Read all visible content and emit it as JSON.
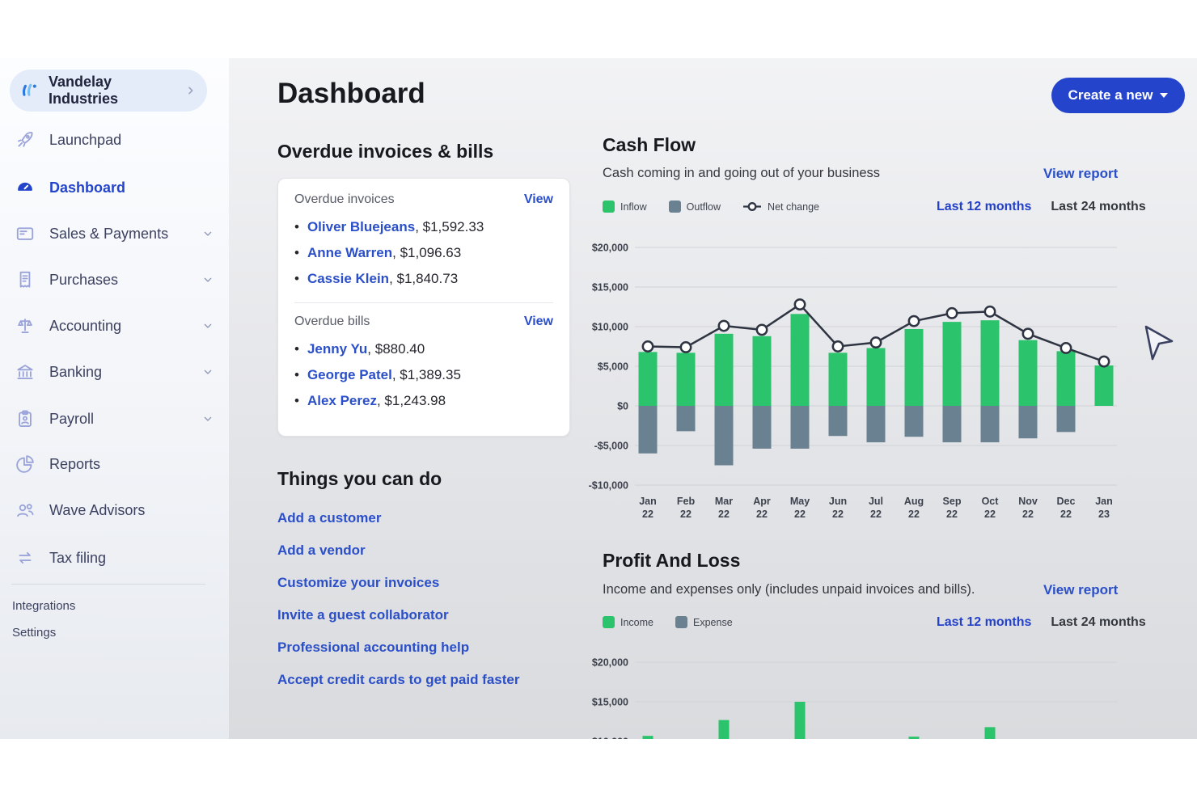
{
  "app": {
    "company": "Vandelay Industries",
    "page_title": "Dashboard",
    "create_button": "Create a new"
  },
  "sidebar": {
    "items": [
      {
        "label": "Launchpad",
        "icon": "rocket-icon",
        "expandable": false,
        "active": false
      },
      {
        "label": "Dashboard",
        "icon": "gauge-icon",
        "expandable": false,
        "active": true
      },
      {
        "label": "Sales & Payments",
        "icon": "invoice-icon",
        "expandable": true,
        "active": false
      },
      {
        "label": "Purchases",
        "icon": "receipt-icon",
        "expandable": true,
        "active": false
      },
      {
        "label": "Accounting",
        "icon": "scale-icon",
        "expandable": true,
        "active": false
      },
      {
        "label": "Banking",
        "icon": "bank-icon",
        "expandable": true,
        "active": false
      },
      {
        "label": "Payroll",
        "icon": "payroll-icon",
        "expandable": true,
        "active": false
      },
      {
        "label": "Reports",
        "icon": "reports-icon",
        "expandable": false,
        "active": false
      },
      {
        "label": "Wave Advisors",
        "icon": "advisors-icon",
        "expandable": false,
        "active": false
      },
      {
        "label": "Tax filing",
        "icon": "tax-icon",
        "expandable": false,
        "active": false
      }
    ],
    "footer_items": [
      "Integrations",
      "Settings"
    ]
  },
  "overdue": {
    "section_title": "Overdue invoices & bills",
    "invoices": {
      "label": "Overdue invoices",
      "view": "View",
      "items": [
        {
          "name": "Oliver Bluejeans",
          "amount": "$1,592.33"
        },
        {
          "name": "Anne Warren",
          "amount": "$1,096.63"
        },
        {
          "name": "Cassie Klein",
          "amount": "$1,840.73"
        }
      ]
    },
    "bills": {
      "label": "Overdue bills",
      "view": "View",
      "items": [
        {
          "name": "Jenny Yu",
          "amount": "$880.40"
        },
        {
          "name": "George Patel",
          "amount": "$1,389.35"
        },
        {
          "name": "Alex Perez",
          "amount": "$1,243.98"
        }
      ]
    }
  },
  "things": {
    "title": "Things you can do",
    "links": [
      "Add a customer",
      "Add a vendor",
      "Customize your invoices",
      "Invite a guest collaborator",
      "Professional accounting help",
      "Accept credit cards to get paid faster"
    ]
  },
  "cash_flow_section": {
    "title": "Cash Flow",
    "subtitle": "Cash coming in and going out of your business",
    "view_report": "View report",
    "filters": [
      "Last 12 months",
      "Last 24 months"
    ],
    "active_filter": 0
  },
  "profit_loss_section": {
    "title": "Profit And Loss",
    "subtitle": "Income and expenses only (includes unpaid invoices and bills).",
    "view_report": "View report",
    "filters": [
      "Last 12 months",
      "Last 24 months"
    ],
    "active_filter": 0
  },
  "colors": {
    "accent_blue": "#2444cb",
    "link_blue": "#2b4fc8",
    "income_green": "#2bc36b",
    "expense_slate": "#6a8191",
    "net_line": "#2e3442"
  },
  "chart_data": [
    {
      "id": "cash_flow",
      "type": "bar",
      "title": "Cash Flow",
      "categories": [
        "Jan 22",
        "Feb 22",
        "Mar 22",
        "Apr 22",
        "May 22",
        "Jun 22",
        "Jul 22",
        "Aug 22",
        "Sep 22",
        "Oct 22",
        "Nov 22",
        "Dec 22",
        "Jan 23"
      ],
      "series": [
        {
          "name": "Inflow",
          "type": "bar",
          "color": "#2bc36b",
          "values": [
            6800,
            6700,
            9100,
            8800,
            11600,
            6700,
            7300,
            9700,
            10600,
            10800,
            8300,
            6900,
            5100
          ]
        },
        {
          "name": "Outflow",
          "type": "bar",
          "color": "#6a8191",
          "values": [
            -6000,
            -3200,
            -7500,
            -5400,
            -5400,
            -3800,
            -4600,
            -3900,
            -4600,
            -4600,
            -4100,
            -3300,
            0
          ]
        },
        {
          "name": "Net change",
          "type": "line",
          "color": "#2e3442",
          "values": [
            7500,
            7400,
            10100,
            9600,
            12800,
            7500,
            8000,
            10700,
            11700,
            11900,
            9100,
            7300,
            5600
          ]
        }
      ],
      "y_ticks": [
        "$20,000",
        "$15,000",
        "$10,000",
        "$5,000",
        "$0",
        "-$5,000",
        "-$10,000"
      ],
      "y_top": 20000,
      "y_step": 5000,
      "grid": true,
      "legend_position": "top-left"
    },
    {
      "id": "profit_loss",
      "type": "bar",
      "title": "Profit And Loss",
      "categories": [
        "Jan 22",
        "Feb 22",
        "Mar 22",
        "Apr 22",
        "May 22",
        "Jun 22",
        "Jul 22",
        "Aug 22",
        "Sep 22",
        "Oct 22",
        "Nov 22",
        "Dec 22",
        "Jan 23"
      ],
      "series": [
        {
          "name": "Income",
          "type": "bar",
          "color": "#2bc36b",
          "values": [
            10700,
            null,
            12700,
            null,
            15000,
            null,
            null,
            10600,
            null,
            11800,
            null,
            null,
            null
          ]
        },
        {
          "name": "Expense",
          "type": "bar",
          "color": "#6a8191",
          "values": [
            null,
            null,
            null,
            null,
            null,
            null,
            null,
            null,
            null,
            null,
            null,
            null,
            null
          ]
        }
      ],
      "y_ticks": [
        "$20,000",
        "$15,000",
        "$10,000"
      ],
      "y_top": 20000,
      "y_step": 5000,
      "grid": true,
      "legend_position": "top-left",
      "clipped_at_bottom": true
    }
  ]
}
